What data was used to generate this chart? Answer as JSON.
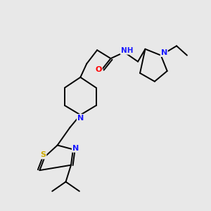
{
  "background_color": "#e8e8e8",
  "fig_width": 3.0,
  "fig_height": 3.0,
  "dpi": 100,
  "atom_colors": {
    "C": "#000000",
    "N": "#1a1aff",
    "O": "#ff0000",
    "S": "#ccaa00",
    "H": "#000000"
  },
  "bond_color": "#000000",
  "bond_width": 1.4,
  "font_size_atoms": 8.0
}
